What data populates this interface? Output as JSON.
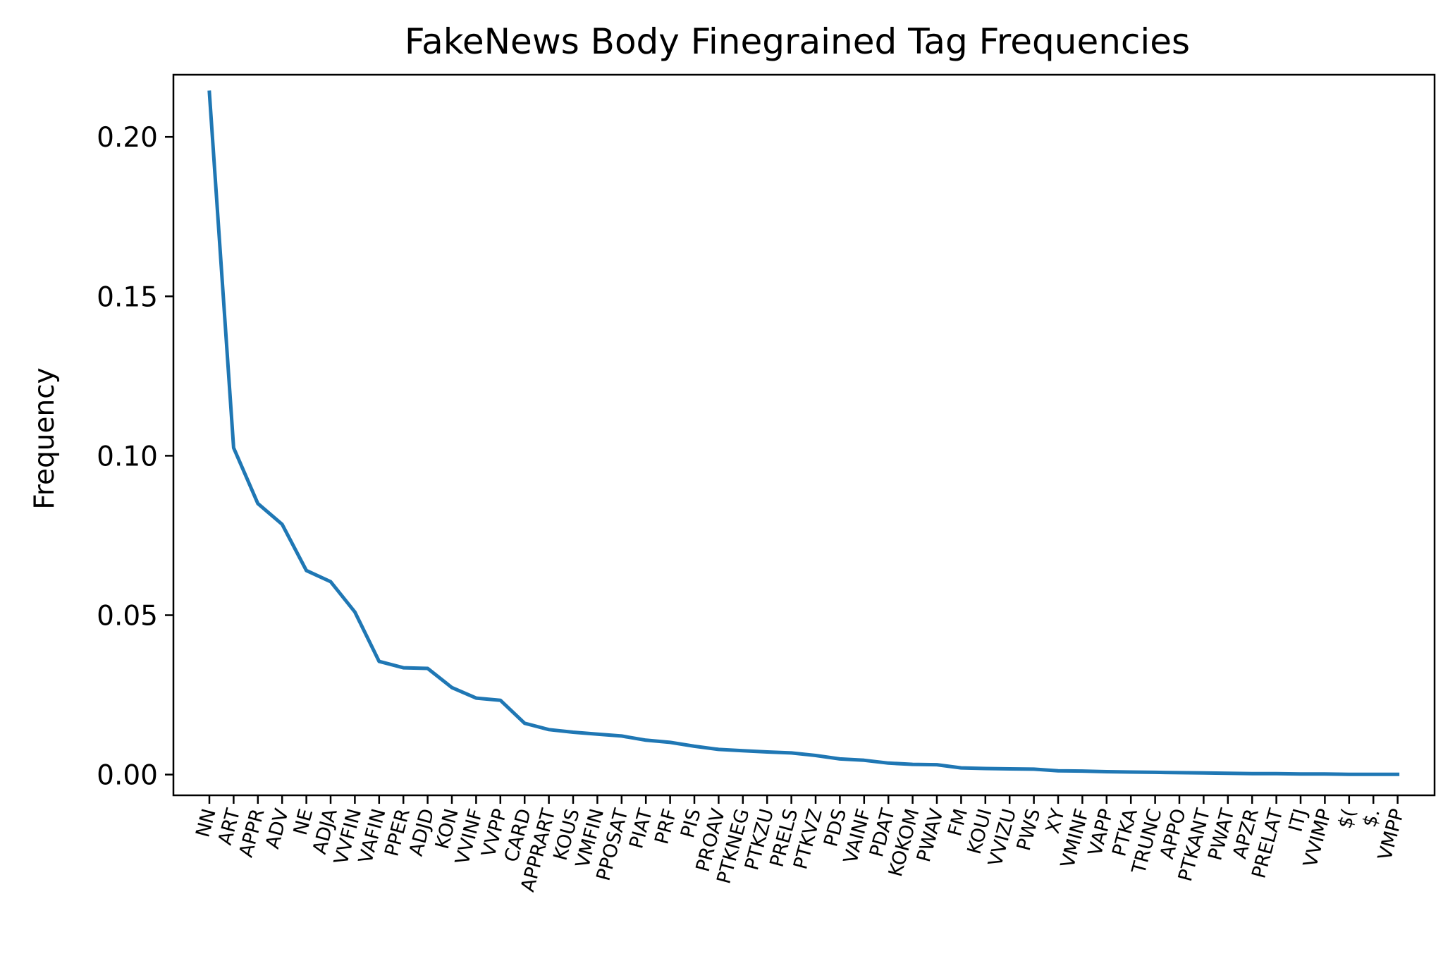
{
  "chart_data": {
    "type": "line",
    "title": "FakeNews Body Finegrained Tag Frequencies",
    "xlabel": "",
    "ylabel": "Frequency",
    "ylim": [
      -0.0065,
      0.2195
    ],
    "yticks": [
      "0.00",
      "0.05",
      "0.10",
      "0.15",
      "0.20"
    ],
    "grid": false,
    "line_color": "#1f77b4",
    "categories": [
      "NN",
      "ART",
      "APPR",
      "ADV",
      "NE",
      "ADJA",
      "VVFIN",
      "VAFIN",
      "PPER",
      "ADJD",
      "KON",
      "VVINF",
      "VVPP",
      "CARD",
      "APPRART",
      "KOUS",
      "VMFIN",
      "PPOSAT",
      "PIAT",
      "PRF",
      "PIS",
      "PROAV",
      "PTKNEG",
      "PTKZU",
      "PRELS",
      "PTKVZ",
      "PDS",
      "VAINF",
      "PDAT",
      "KOKOM",
      "PWAV",
      "FM",
      "KOUI",
      "VVIZU",
      "PWS",
      "XY",
      "VMINF",
      "VAPP",
      "PTKA",
      "TRUNC",
      "APPO",
      "PTKANT",
      "PWAT",
      "APZR",
      "PRELAT",
      "ITJ",
      "VVIMP",
      "$(",
      "$.",
      "VMPP"
    ],
    "values": [
      0.214,
      0.1025,
      0.085,
      0.0785,
      0.064,
      0.0605,
      0.051,
      0.0355,
      0.0335,
      0.0333,
      0.0273,
      0.024,
      0.0233,
      0.0161,
      0.0141,
      0.0133,
      0.0127,
      0.0121,
      0.0108,
      0.0101,
      0.0089,
      0.0079,
      0.0075,
      0.0071,
      0.0068,
      0.006,
      0.0049,
      0.0045,
      0.0036,
      0.0032,
      0.0031,
      0.0021,
      0.0019,
      0.0018,
      0.0017,
      0.0012,
      0.0011,
      0.0009,
      0.0008,
      0.0007,
      0.0006,
      0.0005,
      0.0004,
      0.0003,
      0.0003,
      0.0002,
      0.0002,
      0.0001,
      0.0001,
      0.0001
    ]
  }
}
